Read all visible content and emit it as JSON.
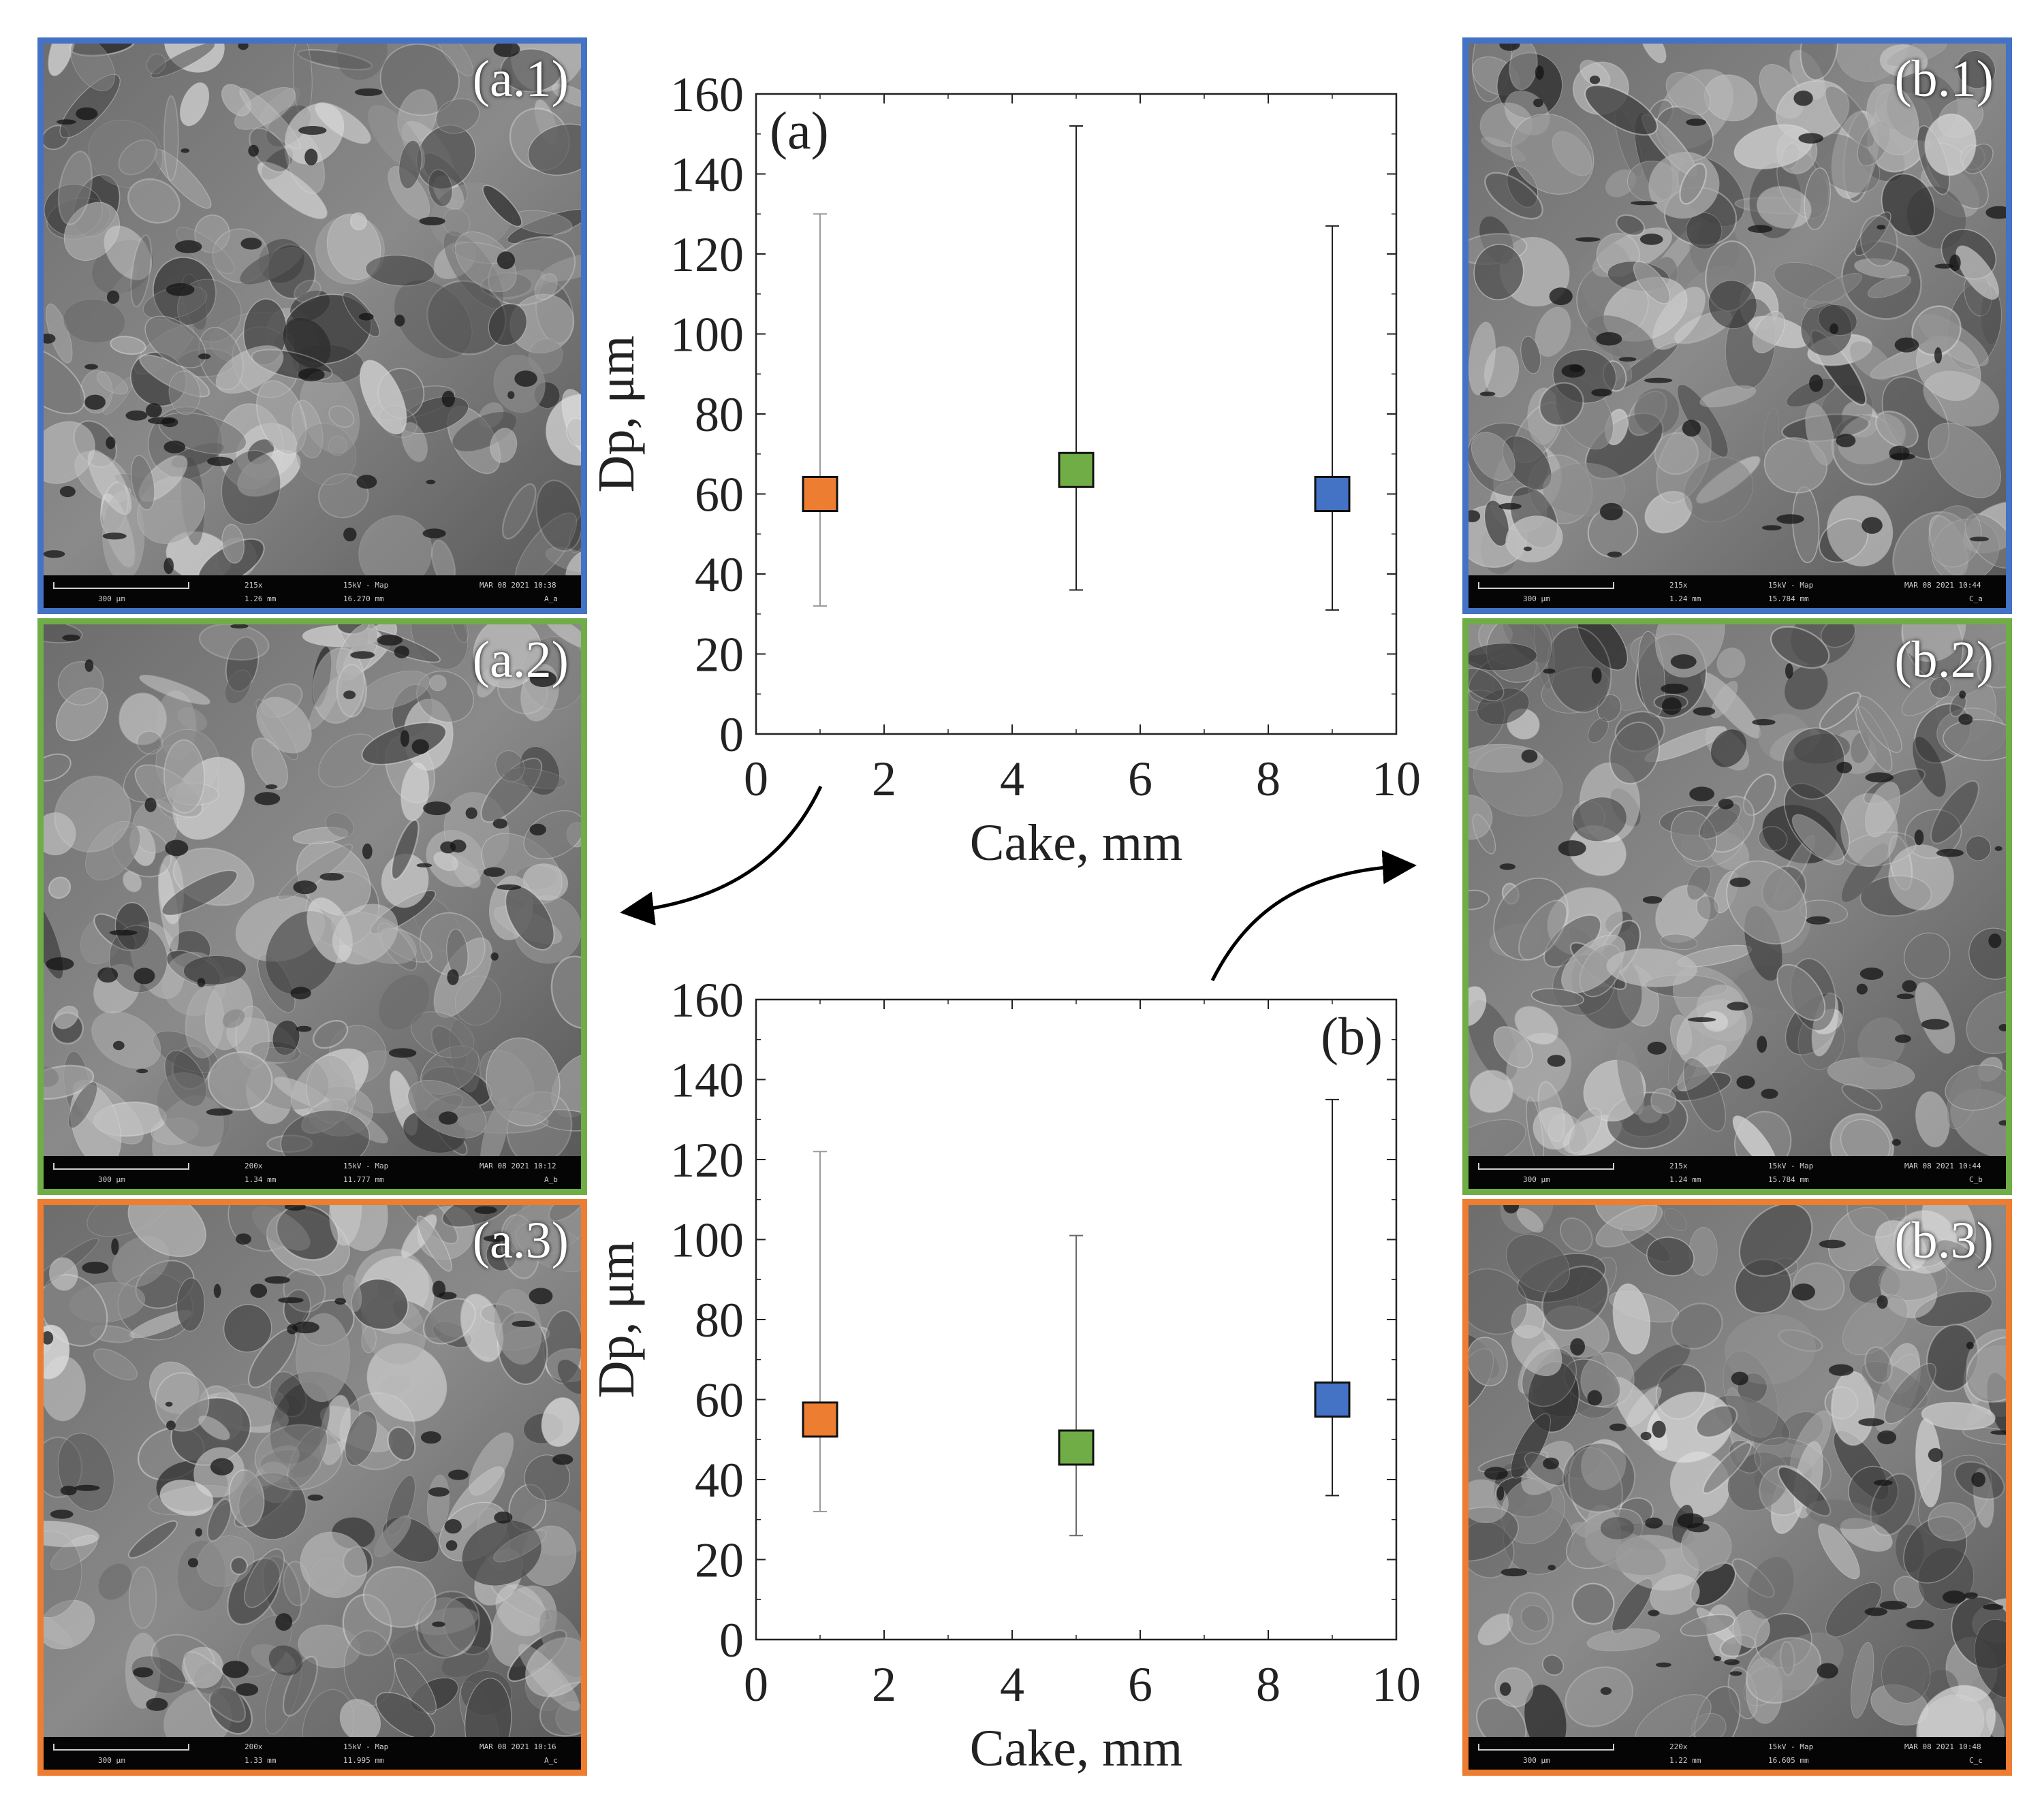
{
  "colors": {
    "blue": "#4472c4",
    "green": "#70ad47",
    "orange": "#ed7d31"
  },
  "micrographs": [
    {
      "id": "a1",
      "label": "(a.1)",
      "border": "#4472c4",
      "magnification": "215x",
      "hfw": "1.26 mm",
      "wd": "16.270 mm",
      "mode": "15kV - Map",
      "date": "MAR 08 2021 10:38",
      "scale": "300 µm",
      "image": "A_a"
    },
    {
      "id": "a2",
      "label": "(a.2)",
      "border": "#70ad47",
      "magnification": "200x",
      "hfw": "1.34 mm",
      "wd": "11.777 mm",
      "mode": "15kV - Map",
      "date": "MAR 08 2021 10:12",
      "scale": "300 µm",
      "image": "A_b"
    },
    {
      "id": "a3",
      "label": "(a.3)",
      "border": "#ed7d31",
      "magnification": "200x",
      "hfw": "1.33 mm",
      "wd": "11.995 mm",
      "mode": "15kV - Map",
      "date": "MAR 08 2021 10:16",
      "scale": "300 µm",
      "image": "A_c"
    },
    {
      "id": "b1",
      "label": "(b.1)",
      "border": "#4472c4",
      "magnification": "215x",
      "hfw": "1.24 mm",
      "wd": "15.784 mm",
      "mode": "15kV - Map",
      "date": "MAR 08 2021 10:44",
      "scale": "300 µm",
      "image": "C_a"
    },
    {
      "id": "b2",
      "label": "(b.2)",
      "border": "#70ad47",
      "magnification": "215x",
      "hfw": "1.24 mm",
      "wd": "15.784 mm",
      "mode": "15kV - Map",
      "date": "MAR 08 2021 10:44",
      "scale": "300 µm",
      "image": "C_b"
    },
    {
      "id": "b3",
      "label": "(b.3)",
      "border": "#ed7d31",
      "magnification": "220x",
      "hfw": "1.22 mm",
      "wd": "16.605 mm",
      "mode": "15kV - Map",
      "date": "MAR 08 2021 10:48",
      "scale": "300 µm",
      "image": "C_c"
    }
  ],
  "chart_data": [
    {
      "type": "scatter",
      "panel_label": "(a)",
      "xlabel": "Cake, mm",
      "ylabel": "Dp, μm",
      "xlim": [
        0,
        10
      ],
      "ylim": [
        0,
        160
      ],
      "xticks": [
        0,
        2,
        4,
        6,
        8,
        10
      ],
      "yticks": [
        0,
        20,
        40,
        60,
        80,
        100,
        120,
        140,
        160
      ],
      "grid": false,
      "points": [
        {
          "x": 1,
          "y": 60,
          "ymin": 32,
          "ymax": 130,
          "color": "#ed7d31"
        },
        {
          "x": 5,
          "y": 66,
          "ymin": 36,
          "ymax": 152,
          "color": "#70ad47"
        },
        {
          "x": 9,
          "y": 60,
          "ymin": 31,
          "ymax": 127,
          "color": "#4472c4"
        }
      ]
    },
    {
      "type": "scatter",
      "panel_label": "(b)",
      "xlabel": "Cake, mm",
      "ylabel": "Dp, μm",
      "xlim": [
        0,
        10
      ],
      "ylim": [
        0,
        160
      ],
      "xticks": [
        0,
        2,
        4,
        6,
        8,
        10
      ],
      "yticks": [
        0,
        20,
        40,
        60,
        80,
        100,
        120,
        140,
        160
      ],
      "grid": false,
      "points": [
        {
          "x": 1,
          "y": 55,
          "ymin": 32,
          "ymax": 122,
          "color": "#ed7d31"
        },
        {
          "x": 5,
          "y": 48,
          "ymin": 26,
          "ymax": 101,
          "color": "#70ad47"
        },
        {
          "x": 9,
          "y": 60,
          "ymin": 36,
          "ymax": 135,
          "color": "#4472c4"
        }
      ]
    }
  ]
}
